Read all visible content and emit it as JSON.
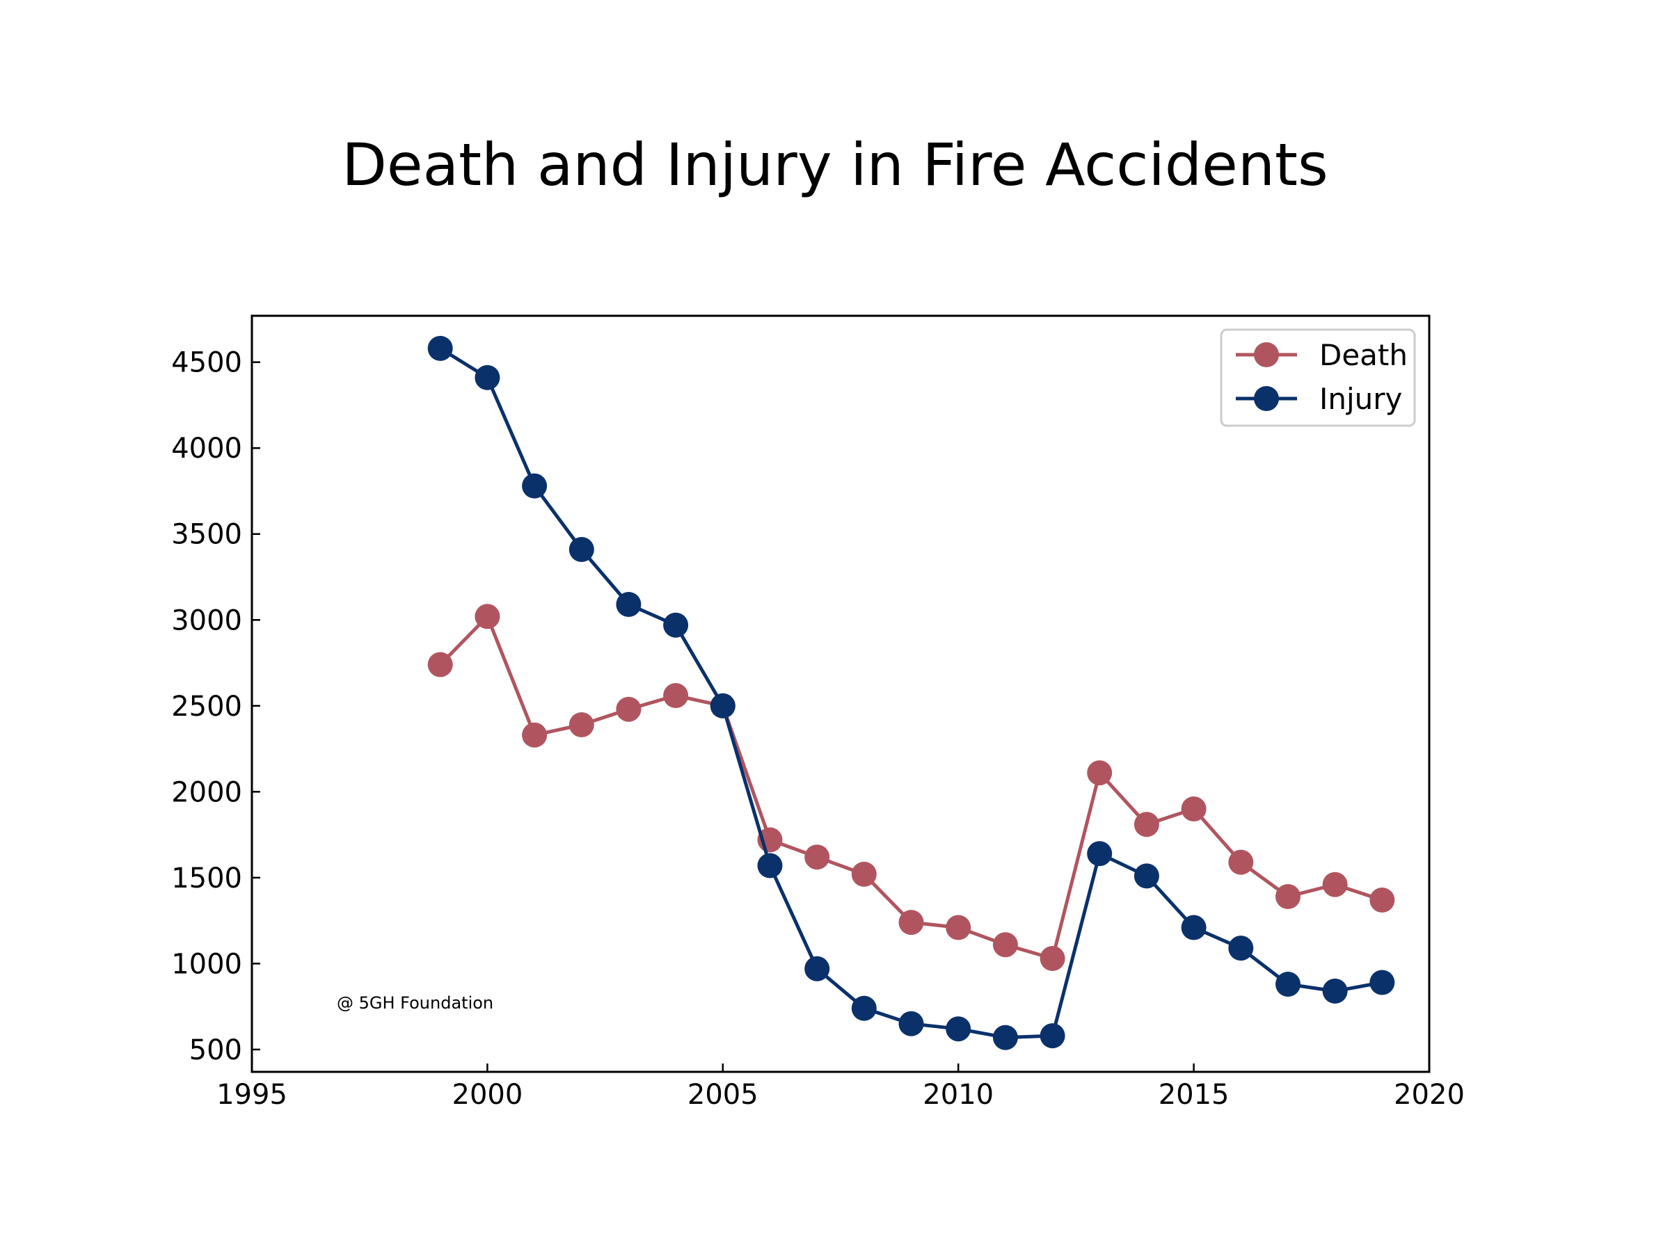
{
  "chart_data": {
    "type": "line",
    "title": "Death and Injury in Fire Accidents",
    "xlabel": "",
    "ylabel": "",
    "xlim": [
      1995,
      2020
    ],
    "ylim": [
      370,
      4770
    ],
    "xticks": [
      1995,
      2000,
      2005,
      2010,
      2015,
      2020
    ],
    "yticks": [
      500,
      1000,
      1500,
      2000,
      2500,
      3000,
      3500,
      4000,
      4500
    ],
    "grid": false,
    "legend_position": "top-right",
    "annotation": "@ 5GH Foundation",
    "x": [
      1999,
      2000,
      2001,
      2002,
      2003,
      2004,
      2005,
      2006,
      2007,
      2008,
      2009,
      2010,
      2011,
      2012,
      2013,
      2014,
      2015,
      2016,
      2017,
      2018,
      2019
    ],
    "series": [
      {
        "name": "Death",
        "color": "#b0555f",
        "values": [
          2740,
          3020,
          2330,
          2390,
          2480,
          2560,
          2500,
          1720,
          1620,
          1520,
          1240,
          1210,
          1110,
          1030,
          2110,
          1810,
          1900,
          1590,
          1390,
          1460,
          1370
        ]
      },
      {
        "name": "Injury",
        "color": "#0b316b",
        "values": [
          4580,
          4410,
          3780,
          3410,
          3090,
          2970,
          2500,
          1570,
          970,
          740,
          650,
          620,
          570,
          580,
          1640,
          1510,
          1210,
          1090,
          880,
          840,
          890
        ]
      }
    ]
  }
}
